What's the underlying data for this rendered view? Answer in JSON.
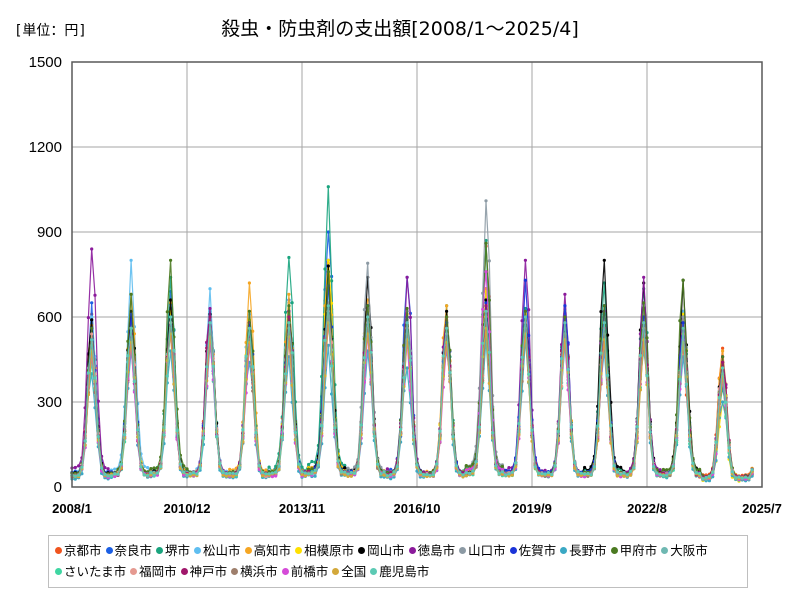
{
  "chart_data": {
    "type": "line",
    "title": "殺虫・防虫剤の支出額[2008/1～2025/4]",
    "unit_label": "[単位：円]",
    "ylim": [
      0,
      1500
    ],
    "yticks": [
      "0",
      "300",
      "600",
      "900",
      "1200",
      "1500"
    ],
    "ytick_values": [
      0,
      300,
      600,
      900,
      1200,
      1500
    ],
    "xlim": [
      "2008-01",
      "2025-07"
    ],
    "xticks": [
      "2008/1",
      "2010/12",
      "2013/11",
      "2016/10",
      "2019/9",
      "2022/8",
      "2025/7"
    ],
    "xtick_dates": [
      "2008-01",
      "2010-12",
      "2013-11",
      "2016-10",
      "2019-09",
      "2022-08",
      "2025-07"
    ],
    "grid": true,
    "legend_position": "bottom",
    "seasonal_peak_month": 7,
    "series": [
      {
        "name": "京都市",
        "color": "#f0541e",
        "peaks": [
          610,
          580,
          600,
          620,
          610,
          650,
          800,
          630,
          600,
          600,
          850,
          620,
          570,
          530,
          560,
          500,
          490
        ]
      },
      {
        "name": "奈良市",
        "color": "#1b5fe4",
        "peaks": [
          650,
          600,
          690,
          600,
          560,
          660,
          900,
          640,
          740,
          580,
          700,
          600,
          600,
          610,
          560,
          620,
          420
        ]
      },
      {
        "name": "堺市",
        "color": "#1aa47e",
        "peaks": [
          560,
          580,
          740,
          620,
          590,
          810,
          1060,
          630,
          590,
          640,
          870,
          630,
          620,
          720,
          700,
          600,
          350
        ]
      },
      {
        "name": "松山市",
        "color": "#5fbef0",
        "peaks": [
          600,
          800,
          640,
          700,
          610,
          650,
          700,
          640,
          600,
          570,
          640,
          600,
          570,
          560,
          610,
          620,
          400
        ]
      },
      {
        "name": "高知市",
        "color": "#f5a623",
        "peaks": [
          570,
          680,
          650,
          600,
          720,
          680,
          790,
          660,
          610,
          640,
          700,
          610,
          620,
          560,
          610,
          550,
          480
        ]
      },
      {
        "name": "相模原市",
        "color": "#ffe000",
        "peaks": [
          500,
          600,
          620,
          580,
          590,
          600,
          800,
          620,
          600,
          600,
          690,
          610,
          580,
          560,
          580,
          610,
          300
        ]
      },
      {
        "name": "岡山市",
        "color": "#000000",
        "peaks": [
          590,
          620,
          660,
          610,
          580,
          620,
          780,
          740,
          620,
          620,
          660,
          600,
          570,
          800,
          720,
          730,
          440
        ]
      },
      {
        "name": "徳島市",
        "color": "#8b1a9b",
        "peaks": [
          840,
          560,
          570,
          630,
          580,
          620,
          620,
          600,
          740,
          600,
          640,
          800,
          680,
          620,
          740,
          600,
          460
        ]
      },
      {
        "name": "山口市",
        "color": "#8c9aa4",
        "peaks": [
          520,
          560,
          580,
          600,
          570,
          610,
          650,
          790,
          620,
          580,
          1010,
          600,
          620,
          600,
          640,
          600,
          420
        ]
      },
      {
        "name": "佐賀市",
        "color": "#1a33d8",
        "peaks": [
          560,
          610,
          600,
          580,
          570,
          600,
          710,
          640,
          600,
          580,
          650,
          730,
          640,
          640,
          600,
          580,
          380
        ]
      },
      {
        "name": "長野市",
        "color": "#3aa8c4",
        "peaks": [
          400,
          480,
          480,
          500,
          440,
          460,
          500,
          480,
          420,
          480,
          520,
          520,
          500,
          480,
          480,
          460,
          300
        ]
      },
      {
        "name": "甲府市",
        "color": "#4b7a21",
        "peaks": [
          560,
          680,
          800,
          600,
          620,
          640,
          760,
          640,
          630,
          600,
          860,
          620,
          600,
          640,
          650,
          730,
          460
        ]
      },
      {
        "name": "大阪市",
        "color": "#6fb8b2",
        "peaks": [
          480,
          560,
          600,
          600,
          560,
          540,
          600,
          560,
          560,
          540,
          580,
          560,
          540,
          560,
          540,
          560,
          400
        ]
      },
      {
        "name": "さいたま市",
        "color": "#3fd6a2",
        "peaks": [
          440,
          500,
          560,
          520,
          520,
          540,
          620,
          560,
          520,
          500,
          560,
          540,
          520,
          520,
          520,
          500,
          380
        ]
      },
      {
        "name": "福岡市",
        "color": "#e59a91",
        "peaks": [
          540,
          560,
          580,
          560,
          520,
          560,
          620,
          580,
          560,
          540,
          600,
          580,
          540,
          560,
          560,
          540,
          420
        ]
      },
      {
        "name": "神戸市",
        "color": "#a0176b",
        "peaks": [
          520,
          540,
          570,
          600,
          560,
          600,
          640,
          600,
          580,
          560,
          640,
          600,
          580,
          560,
          580,
          560,
          440
        ]
      },
      {
        "name": "横浜市",
        "color": "#9e7f6c",
        "peaks": [
          500,
          520,
          560,
          540,
          520,
          560,
          600,
          560,
          540,
          520,
          580,
          560,
          540,
          540,
          540,
          540,
          400
        ]
      },
      {
        "name": "前橋市",
        "color": "#d54bd8",
        "peaks": [
          460,
          500,
          540,
          520,
          500,
          520,
          580,
          540,
          520,
          500,
          760,
          540,
          520,
          520,
          520,
          520,
          380
        ]
      },
      {
        "name": "全国",
        "color": "#d3a83a",
        "peaks": [
          480,
          510,
          540,
          530,
          510,
          530,
          580,
          540,
          520,
          510,
          560,
          540,
          520,
          520,
          520,
          510,
          390
        ]
      },
      {
        "name": "鹿児島市",
        "color": "#5ccab4",
        "peaks": [
          520,
          560,
          600,
          580,
          560,
          580,
          640,
          600,
          580,
          560,
          620,
          600,
          580,
          580,
          580,
          560,
          420
        ]
      }
    ]
  }
}
